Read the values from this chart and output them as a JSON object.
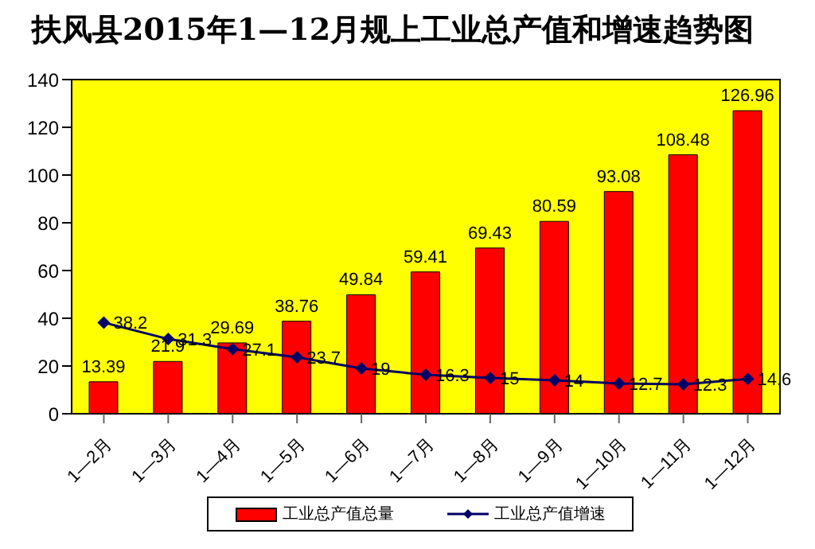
{
  "chart_data": {
    "type": "bar",
    "title": "扶风县2015年1—12月规上工业总产值和增速趋势图",
    "categories": [
      "1—2月",
      "1—3月",
      "1—4月",
      "1—5月",
      "1—6月",
      "1—7月",
      "1—8月",
      "1—9月",
      "1—10月",
      "1—11月",
      "1—12月"
    ],
    "series": [
      {
        "name": "工业总产值总量",
        "color": "#ff0000",
        "values": [
          13.39,
          21.9,
          29.69,
          38.76,
          49.84,
          59.41,
          69.43,
          80.59,
          93.08,
          108.48,
          126.96
        ]
      },
      {
        "name": "工业总产值增速",
        "type": "line",
        "color": "#000066",
        "marker": "diamond",
        "values": [
          38.2,
          31.3,
          27.1,
          23.7,
          19,
          16.3,
          15,
          14,
          12.7,
          12.3,
          14.6
        ]
      }
    ],
    "ylim": [
      0,
      140
    ],
    "yticks": [
      0,
      20,
      40,
      60,
      80,
      100,
      120,
      140
    ],
    "legend": "bottom",
    "data_labels": true
  }
}
